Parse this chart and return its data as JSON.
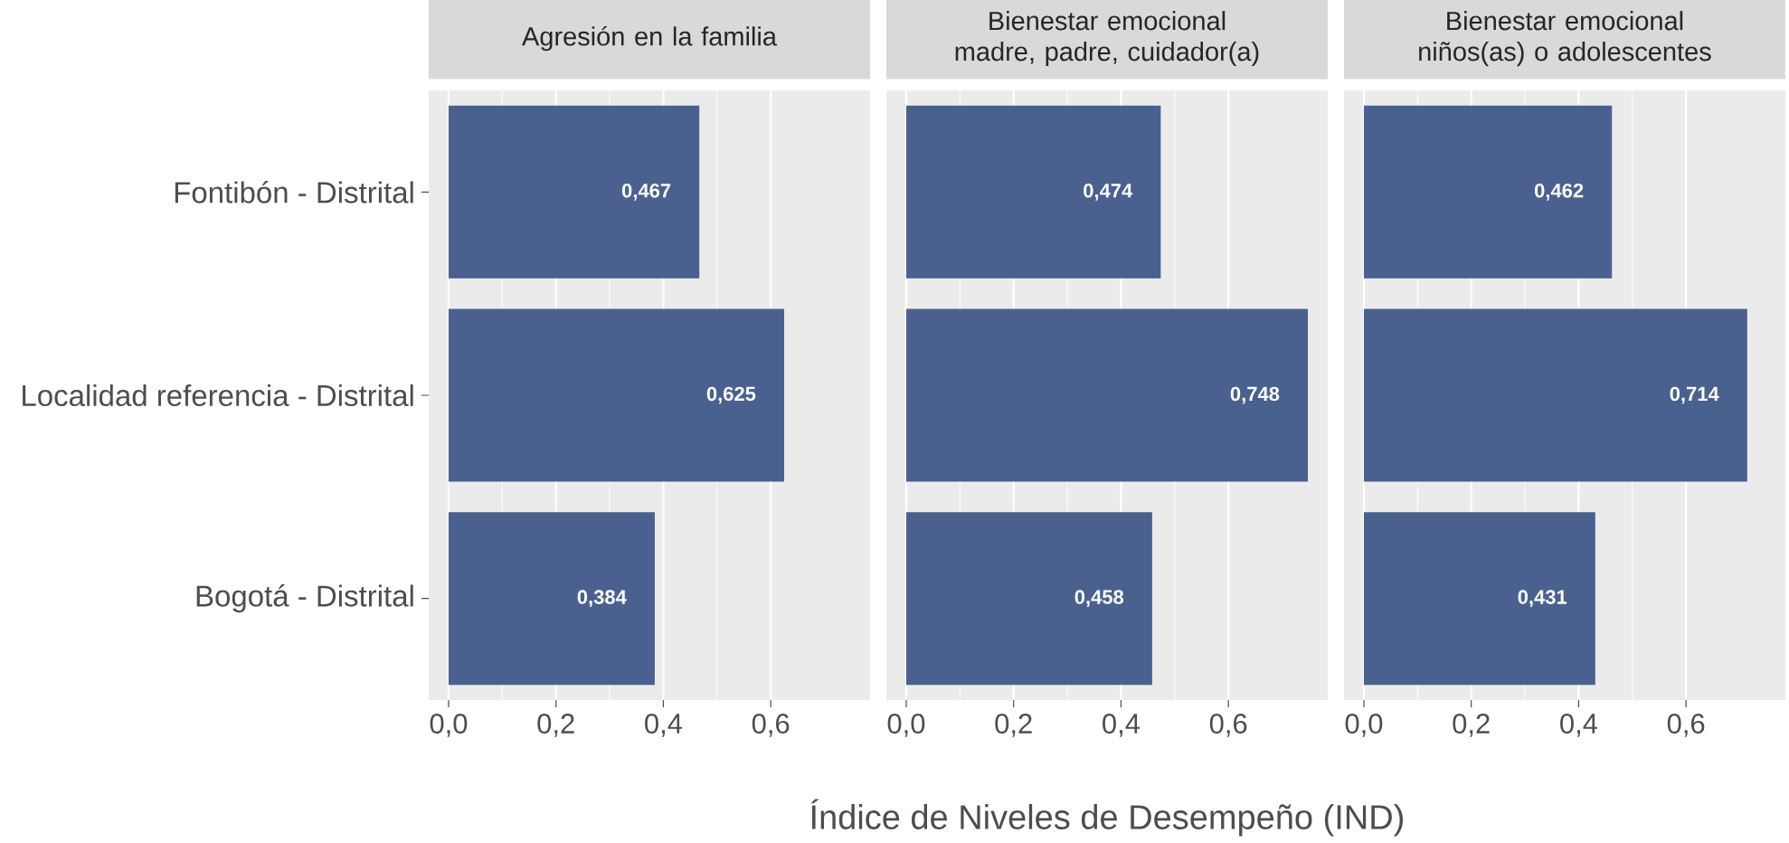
{
  "chart_data": [
    {
      "type": "bar",
      "orientation": "horizontal",
      "title": "Agresión en la familia",
      "categories": [
        "Fontibón - Distrital",
        "Localidad referencia - Distrital",
        "Bogotá - Distrital"
      ],
      "values": [
        0.467,
        0.625,
        0.384
      ],
      "value_labels": [
        "0,467",
        "0,625",
        "0,384"
      ],
      "color": "#4a6190",
      "xlim": [
        -0.037,
        0.785
      ],
      "xticks": [
        {
          "value": 0,
          "label": "0,0"
        },
        {
          "value": 0.2,
          "label": "0,2"
        },
        {
          "value": 0.4,
          "label": "0,4"
        },
        {
          "value": 0.6,
          "label": "0,6"
        }
      ],
      "grid": "x"
    },
    {
      "type": "bar",
      "orientation": "horizontal",
      "title": "Bienestar emocional madre, padre, cuidador(a)",
      "xlabel": "Índice de Niveles de Desempeño (IND)",
      "categories": [
        null,
        null,
        null
      ],
      "values": [
        0.474,
        0.748,
        0.458
      ],
      "value_labels": [
        "0,474",
        "0,748",
        "0,458"
      ],
      "color": "#4a6190",
      "xlim": [
        -0.037,
        0.785
      ],
      "xticks": [
        {
          "value": 0,
          "label": "0,0"
        },
        {
          "value": 0.2,
          "label": "0,2"
        },
        {
          "value": 0.4,
          "label": "0,4"
        },
        {
          "value": 0.6,
          "label": "0,6"
        }
      ],
      "grid": "x",
      "tick_labels": "x"
    },
    {
      "type": "bar",
      "orientation": "horizontal",
      "title": "Bienestar emocional niños(as) o adolescentes",
      "categories": [
        null,
        null,
        null
      ],
      "values": [
        0.462,
        0.714,
        0.431
      ],
      "value_labels": [
        "0,462",
        "0,714",
        "0,431"
      ],
      "color": "#4a6190",
      "xlim": [
        -0.037,
        0.785
      ],
      "xticks": [
        {
          "value": 0,
          "label": "0,0"
        },
        {
          "value": 0.2,
          "label": "0,2"
        },
        {
          "value": 0.4,
          "label": "0,4"
        },
        {
          "value": 0.6,
          "label": "0,6"
        }
      ],
      "grid": "x",
      "tick_labels": "x"
    }
  ]
}
